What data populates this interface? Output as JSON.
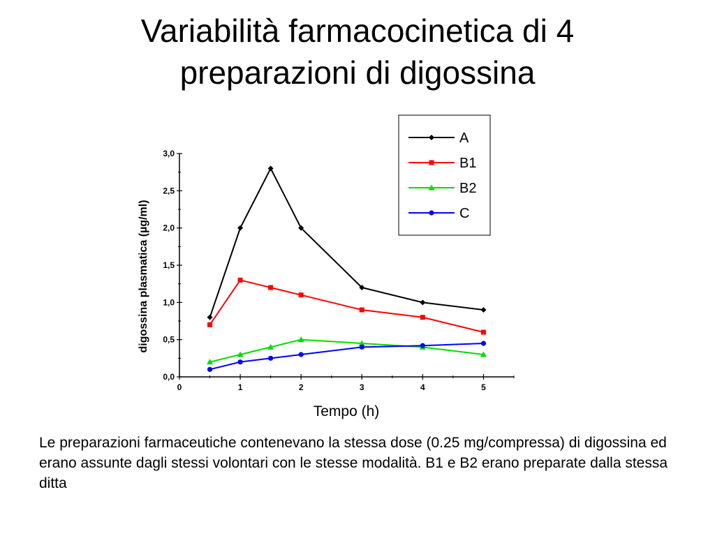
{
  "slide": {
    "title_line1": "Variabilità farmacocinetica di 4",
    "title_line2": "preparazioni di digossina",
    "caption": "Le preparazioni farmaceutiche contenevano la stessa dose (0.25 mg/compressa) di digossina ed erano assunte dagli stessi volontari con le stesse modalità. B1 e B2 erano preparate dalla stessa ditta"
  },
  "chart_data": {
    "type": "line",
    "xlabel": "Tempo (h)",
    "ylabel": "digossina plasmatica (µg/ml)",
    "xlim": [
      0,
      5.5
    ],
    "ylim": [
      0,
      3.0
    ],
    "x_ticks": [
      "0",
      "1",
      "2",
      "3",
      "4",
      "5"
    ],
    "y_ticks": [
      "0,0",
      "0,5",
      "1,0",
      "1,5",
      "2,0",
      "2,5",
      "3,0"
    ],
    "grid": false,
    "legend": "top-right",
    "x": [
      0.5,
      1,
      1.5,
      2,
      3,
      4,
      5
    ],
    "series": [
      {
        "name": "A",
        "color": "#000000",
        "marker": "diamond",
        "values": [
          0.8,
          2.0,
          2.8,
          2.0,
          1.2,
          1.0,
          0.9
        ]
      },
      {
        "name": "B1",
        "color": "#ff0000",
        "marker": "square",
        "values": [
          0.7,
          1.3,
          1.2,
          1.1,
          0.9,
          0.8,
          0.6
        ]
      },
      {
        "name": "B2",
        "color": "#00dd00",
        "marker": "triangle",
        "values": [
          0.2,
          0.3,
          0.4,
          0.5,
          0.45,
          0.4,
          0.3
        ]
      },
      {
        "name": "C",
        "color": "#0000ff",
        "marker": "circle",
        "values": [
          0.1,
          0.2,
          0.25,
          0.3,
          0.4,
          0.42,
          0.45
        ]
      }
    ]
  }
}
